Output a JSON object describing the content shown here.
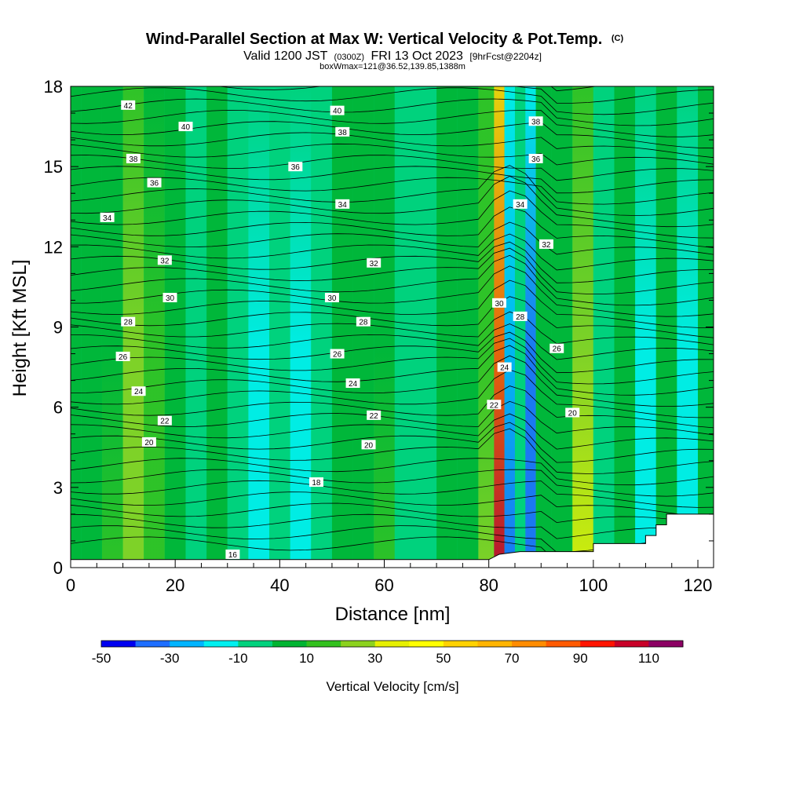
{
  "chart_data": {
    "type": "heatmap",
    "title": "Wind-Parallel Section at Max W: Vertical Velocity & Pot.Temp.",
    "title_suffix": "(C)",
    "subtitle": {
      "valid": "Valid 1200 JST",
      "utc": "(0300Z)",
      "date": "FRI 13 Oct 2023",
      "fcst": "[9hrFcst@2204z]"
    },
    "subtitle2": "boxWmax=121@36.52,139.85,1388m",
    "xlabel": "Distance [nm]",
    "ylabel": "Height [Kft MSL]",
    "xlim": [
      0,
      123
    ],
    "ylim": [
      0,
      18
    ],
    "x_ticks": [
      0,
      20,
      40,
      60,
      80,
      100,
      120
    ],
    "y_ticks": [
      0,
      3,
      6,
      9,
      12,
      15,
      18
    ],
    "colorbar": {
      "label": "Vertical Velocity [cm/s]",
      "levels": [
        -50,
        -40,
        -30,
        -20,
        -10,
        0,
        10,
        20,
        30,
        40,
        50,
        60,
        70,
        80,
        90,
        100,
        110,
        120
      ],
      "tick_labels": [
        -50,
        -30,
        -10,
        10,
        30,
        50,
        70,
        90,
        110
      ],
      "colors": [
        "#0000f0",
        "#1e6eff",
        "#00b4ff",
        "#00f0f0",
        "#00d27d",
        "#00b432",
        "#33c11e",
        "#8cd21e",
        "#e6f000",
        "#ffff00",
        "#ffd200",
        "#ffb400",
        "#ff8c00",
        "#ff5a00",
        "#ff1400",
        "#c80028",
        "#8c0064",
        "#5a0096"
      ]
    },
    "columns_x": [
      0,
      4,
      8,
      12,
      16,
      20,
      24,
      28,
      32,
      36,
      40,
      44,
      48,
      52,
      56,
      60,
      64,
      68,
      72,
      76,
      80,
      82,
      84,
      86,
      88,
      90,
      94,
      98,
      102,
      106,
      110,
      114,
      118,
      122
    ],
    "column_vv": [
      0,
      5,
      12,
      25,
      18,
      5,
      -6,
      0,
      -5,
      -15,
      -8,
      -20,
      -5,
      8,
      3,
      10,
      -5,
      -3,
      6,
      8,
      20,
      105,
      -35,
      -8,
      -40,
      6,
      0,
      35,
      -10,
      5,
      -15,
      0,
      -20,
      0
    ],
    "terrain": [
      [
        0,
        0.3
      ],
      [
        30,
        0.3
      ],
      [
        80,
        0.3
      ],
      [
        82,
        0.5
      ],
      [
        86,
        0.6
      ],
      [
        90,
        0.6
      ],
      [
        100,
        0.6
      ],
      [
        100,
        0.9
      ],
      [
        110,
        0.9
      ],
      [
        110,
        1.2
      ],
      [
        112,
        1.2
      ],
      [
        112,
        1.6
      ],
      [
        114,
        1.6
      ],
      [
        114,
        2.0
      ],
      [
        117,
        2.0
      ],
      [
        123,
        2.0
      ]
    ],
    "theta_labels": [
      {
        "x": 11,
        "y": 17.3,
        "t": "42"
      },
      {
        "x": 22,
        "y": 16.5,
        "t": "40"
      },
      {
        "x": 51,
        "y": 17.1,
        "t": "40"
      },
      {
        "x": 52,
        "y": 16.3,
        "t": "38"
      },
      {
        "x": 89,
        "y": 16.7,
        "t": "38"
      },
      {
        "x": 12,
        "y": 15.3,
        "t": "38"
      },
      {
        "x": 43,
        "y": 15.0,
        "t": "36"
      },
      {
        "x": 89,
        "y": 15.3,
        "t": "36"
      },
      {
        "x": 16,
        "y": 14.4,
        "t": "36"
      },
      {
        "x": 52,
        "y": 13.6,
        "t": "34"
      },
      {
        "x": 86,
        "y": 13.6,
        "t": "34"
      },
      {
        "x": 7,
        "y": 13.1,
        "t": "34"
      },
      {
        "x": 91,
        "y": 12.1,
        "t": "32"
      },
      {
        "x": 18,
        "y": 11.5,
        "t": "32"
      },
      {
        "x": 58,
        "y": 11.4,
        "t": "32"
      },
      {
        "x": 19,
        "y": 10.1,
        "t": "30"
      },
      {
        "x": 50,
        "y": 10.1,
        "t": "30"
      },
      {
        "x": 82,
        "y": 9.9,
        "t": "30"
      },
      {
        "x": 11,
        "y": 9.2,
        "t": "28"
      },
      {
        "x": 56,
        "y": 9.2,
        "t": "28"
      },
      {
        "x": 86,
        "y": 9.4,
        "t": "28"
      },
      {
        "x": 10,
        "y": 7.9,
        "t": "26"
      },
      {
        "x": 51,
        "y": 8.0,
        "t": "26"
      },
      {
        "x": 93,
        "y": 8.2,
        "t": "26"
      },
      {
        "x": 13,
        "y": 6.6,
        "t": "24"
      },
      {
        "x": 54,
        "y": 6.9,
        "t": "24"
      },
      {
        "x": 83,
        "y": 7.5,
        "t": "24"
      },
      {
        "x": 18,
        "y": 5.5,
        "t": "22"
      },
      {
        "x": 58,
        "y": 5.7,
        "t": "22"
      },
      {
        "x": 81,
        "y": 6.1,
        "t": "22"
      },
      {
        "x": 15,
        "y": 4.7,
        "t": "20"
      },
      {
        "x": 57,
        "y": 4.6,
        "t": "20"
      },
      {
        "x": 96,
        "y": 5.8,
        "t": "20"
      },
      {
        "x": 47,
        "y": 3.2,
        "t": "18"
      },
      {
        "x": 31,
        "y": 0.5,
        "t": "16"
      }
    ]
  }
}
